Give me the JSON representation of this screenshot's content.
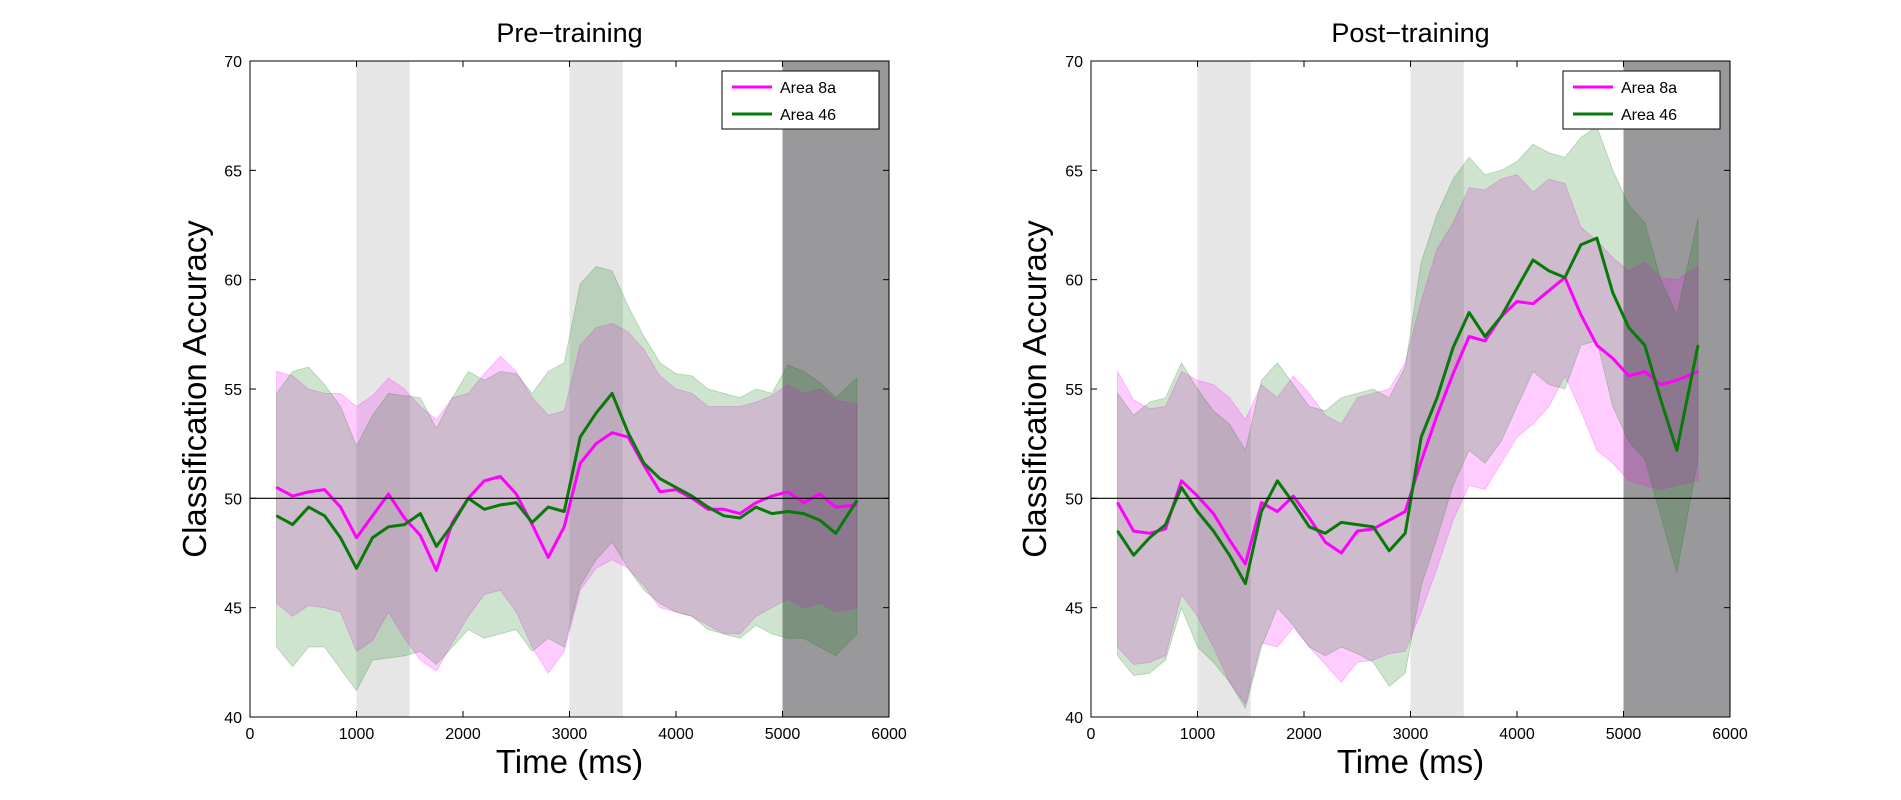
{
  "chart_data": [
    {
      "type": "line",
      "title": "Pre−training",
      "xlabel": "Time (ms)",
      "ylabel": "Classification Accuracy",
      "xlim": [
        0,
        6000
      ],
      "ylim": [
        40,
        70
      ],
      "xticks": [
        "0",
        "1000",
        "2000",
        "3000",
        "4000",
        "5000",
        "6000"
      ],
      "yticks": [
        "40",
        "45",
        "50",
        "55",
        "60",
        "65",
        "70"
      ],
      "reference_line": 50,
      "legend_position": "top-right",
      "shaded_intervals": [
        {
          "start": 1000,
          "end": 1500,
          "shade": "light"
        },
        {
          "start": 3000,
          "end": 3500,
          "shade": "light"
        },
        {
          "start": 5000,
          "end": 6000,
          "shade": "dark"
        }
      ],
      "series": [
        {
          "name": "Area 8a",
          "color": "#ff00ff",
          "x": [
            250,
            400,
            550,
            700,
            850,
            1000,
            1150,
            1300,
            1450,
            1600,
            1750,
            1900,
            2050,
            2200,
            2350,
            2500,
            2650,
            2800,
            2950,
            3100,
            3250,
            3400,
            3550,
            3700,
            3850,
            4000,
            4150,
            4300,
            4450,
            4600,
            4750,
            4900,
            5050,
            5200,
            5350,
            5500,
            5700
          ],
          "y": [
            50.5,
            50.1,
            50.3,
            50.4,
            49.6,
            48.2,
            49.2,
            50.2,
            49.1,
            48.3,
            46.7,
            48.9,
            50.0,
            50.8,
            51.0,
            50.2,
            48.8,
            47.3,
            48.7,
            51.6,
            52.5,
            53.0,
            52.8,
            51.5,
            50.3,
            50.4,
            50.0,
            49.5,
            49.5,
            49.3,
            49.8,
            50.1,
            50.3,
            49.8,
            50.2,
            49.6,
            49.7
          ],
          "upper": [
            55.8,
            55.6,
            55.0,
            54.8,
            54.8,
            54.2,
            54.7,
            55.5,
            55.0,
            54.2,
            53.6,
            54.6,
            54.8,
            55.7,
            56.5,
            55.8,
            54.6,
            53.8,
            54.0,
            57.0,
            57.8,
            58.0,
            57.6,
            56.8,
            55.6,
            55.0,
            54.8,
            54.2,
            54.2,
            54.2,
            54.4,
            54.7,
            55.2,
            54.8,
            55.0,
            54.5,
            54.3
          ],
          "lower": [
            45.2,
            44.6,
            45.1,
            45.0,
            44.8,
            43.0,
            43.5,
            44.8,
            43.6,
            42.6,
            42.1,
            43.4,
            44.6,
            45.6,
            45.8,
            44.8,
            43.2,
            42.0,
            43.0,
            45.8,
            46.8,
            47.2,
            46.8,
            46.0,
            45.0,
            44.8,
            44.6,
            44.2,
            43.8,
            43.8,
            44.6,
            45.0,
            45.4,
            45.0,
            45.2,
            44.8,
            45.0
          ]
        },
        {
          "name": "Area 46",
          "color": "#087a08",
          "x": [
            250,
            400,
            550,
            700,
            850,
            1000,
            1150,
            1300,
            1450,
            1600,
            1750,
            1900,
            2050,
            2200,
            2350,
            2500,
            2650,
            2800,
            2950,
            3100,
            3250,
            3400,
            3550,
            3700,
            3850,
            4000,
            4150,
            4300,
            4450,
            4600,
            4750,
            4900,
            5050,
            5200,
            5350,
            5500,
            5700
          ],
          "y": [
            49.2,
            48.8,
            49.6,
            49.2,
            48.2,
            46.8,
            48.2,
            48.7,
            48.8,
            49.3,
            47.8,
            48.8,
            50.0,
            49.5,
            49.7,
            49.8,
            48.9,
            49.6,
            49.4,
            52.8,
            53.9,
            54.8,
            53.0,
            51.6,
            50.9,
            50.5,
            50.1,
            49.6,
            49.2,
            49.1,
            49.6,
            49.3,
            49.4,
            49.3,
            49.0,
            48.4,
            49.9
          ],
          "upper": [
            54.8,
            55.8,
            56.0,
            55.2,
            54.2,
            52.4,
            53.8,
            54.8,
            54.7,
            54.6,
            53.2,
            54.6,
            55.8,
            55.4,
            55.8,
            55.7,
            54.8,
            55.8,
            56.2,
            59.8,
            60.6,
            60.4,
            58.8,
            57.4,
            56.2,
            55.7,
            55.6,
            55.0,
            54.8,
            54.6,
            55.0,
            54.8,
            56.1,
            55.8,
            55.3,
            54.6,
            55.5
          ],
          "lower": [
            43.2,
            42.3,
            43.2,
            43.2,
            42.2,
            41.2,
            42.6,
            42.7,
            42.8,
            43.0,
            42.4,
            43.2,
            44.0,
            43.6,
            43.8,
            44.0,
            43.0,
            43.6,
            43.2,
            46.0,
            47.2,
            48.0,
            46.8,
            45.8,
            45.2,
            44.8,
            44.6,
            44.0,
            43.8,
            43.6,
            44.2,
            43.8,
            43.6,
            43.6,
            43.2,
            42.8,
            43.8
          ]
        }
      ]
    },
    {
      "type": "line",
      "title": "Post−training",
      "xlabel": "Time (ms)",
      "ylabel": "Classification Accuracy",
      "xlim": [
        0,
        6000
      ],
      "ylim": [
        40,
        70
      ],
      "xticks": [
        "0",
        "1000",
        "2000",
        "3000",
        "4000",
        "5000",
        "6000"
      ],
      "yticks": [
        "40",
        "45",
        "50",
        "55",
        "60",
        "65",
        "70"
      ],
      "reference_line": 50,
      "legend_position": "top-right",
      "shaded_intervals": [
        {
          "start": 1000,
          "end": 1500,
          "shade": "light"
        },
        {
          "start": 3000,
          "end": 3500,
          "shade": "light"
        },
        {
          "start": 5000,
          "end": 6000,
          "shade": "dark"
        }
      ],
      "series": [
        {
          "name": "Area 8a",
          "color": "#ff00ff",
          "x": [
            250,
            400,
            550,
            700,
            850,
            1000,
            1150,
            1300,
            1450,
            1600,
            1750,
            1900,
            2050,
            2200,
            2350,
            2500,
            2650,
            2800,
            2950,
            3100,
            3250,
            3400,
            3550,
            3700,
            3850,
            4000,
            4150,
            4300,
            4450,
            4600,
            4750,
            4900,
            5050,
            5200,
            5350,
            5500,
            5700
          ],
          "y": [
            49.8,
            48.5,
            48.4,
            48.6,
            50.8,
            50.1,
            49.3,
            48.1,
            47.0,
            49.8,
            49.4,
            50.1,
            49.1,
            48.0,
            47.5,
            48.5,
            48.6,
            49.0,
            49.4,
            51.7,
            53.8,
            55.7,
            57.4,
            57.2,
            58.3,
            59.0,
            58.9,
            59.5,
            60.1,
            58.4,
            57.0,
            56.4,
            55.6,
            55.8,
            55.2,
            55.4,
            55.8
          ],
          "upper": [
            55.8,
            54.5,
            54.1,
            54.2,
            55.8,
            55.4,
            55.2,
            54.6,
            53.6,
            55.2,
            54.6,
            55.6,
            54.8,
            53.8,
            53.4,
            54.6,
            54.8,
            55.0,
            56.2,
            59.0,
            61.4,
            62.6,
            64.2,
            64.1,
            64.6,
            64.8,
            64.0,
            64.6,
            64.4,
            62.4,
            61.8,
            61.0,
            60.4,
            60.8,
            60.1,
            60.0,
            60.6
          ],
          "lower": [
            43.2,
            42.4,
            42.5,
            42.8,
            45.6,
            44.6,
            43.2,
            41.6,
            40.6,
            43.4,
            43.2,
            44.1,
            43.2,
            42.4,
            41.6,
            42.5,
            42.6,
            42.9,
            43.0,
            44.8,
            46.8,
            49.0,
            50.6,
            50.4,
            51.6,
            52.8,
            53.4,
            54.2,
            55.6,
            54.0,
            52.2,
            51.6,
            50.8,
            50.6,
            50.4,
            50.6,
            50.8
          ]
        },
        {
          "name": "Area 46",
          "color": "#087a08",
          "x": [
            250,
            400,
            550,
            700,
            850,
            1000,
            1150,
            1300,
            1450,
            1600,
            1750,
            1900,
            2050,
            2200,
            2350,
            2500,
            2650,
            2800,
            2950,
            3100,
            3250,
            3400,
            3550,
            3700,
            3850,
            4000,
            4150,
            4300,
            4450,
            4600,
            4750,
            4900,
            5050,
            5200,
            5350,
            5500,
            5700
          ],
          "y": [
            48.5,
            47.4,
            48.2,
            48.8,
            50.5,
            49.4,
            48.5,
            47.4,
            46.1,
            49.4,
            50.8,
            49.8,
            48.7,
            48.4,
            48.9,
            48.8,
            48.7,
            47.6,
            48.4,
            52.8,
            54.6,
            56.9,
            58.5,
            57.4,
            58.3,
            59.6,
            60.9,
            60.4,
            60.1,
            61.6,
            61.9,
            59.4,
            57.8,
            57.0,
            54.5,
            52.2,
            57.0
          ],
          "upper": [
            54.8,
            53.8,
            54.4,
            54.6,
            56.2,
            55.0,
            54.0,
            53.4,
            52.2,
            55.4,
            56.2,
            55.2,
            54.2,
            54.0,
            54.6,
            54.8,
            55.0,
            54.6,
            56.0,
            60.8,
            63.0,
            64.6,
            65.6,
            64.8,
            65.0,
            65.4,
            66.2,
            65.8,
            65.6,
            66.5,
            67.0,
            65.0,
            63.4,
            62.6,
            60.0,
            58.4,
            62.8
          ],
          "lower": [
            42.8,
            41.9,
            42.0,
            42.6,
            45.0,
            43.2,
            42.5,
            41.6,
            40.4,
            43.2,
            45.0,
            44.2,
            43.2,
            42.8,
            43.2,
            42.9,
            42.5,
            41.4,
            42.0,
            46.0,
            48.2,
            50.6,
            52.2,
            51.6,
            52.6,
            54.2,
            55.8,
            55.2,
            55.0,
            57.0,
            57.2,
            54.2,
            52.6,
            51.8,
            49.2,
            46.6,
            51.8
          ]
        }
      ]
    }
  ]
}
